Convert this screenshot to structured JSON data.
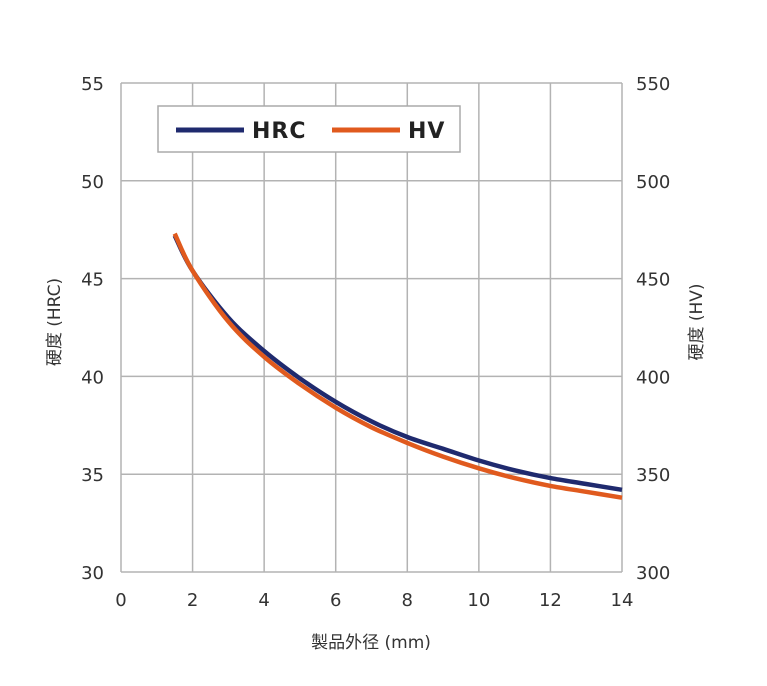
{
  "chart_data": {
    "type": "line",
    "xlabel": "製品外径 (mm)",
    "ylabel": "硬度 (HRC)",
    "y2label": "硬度 (HV)",
    "xlim": [
      0,
      14
    ],
    "ylim": [
      30,
      55
    ],
    "y2lim": [
      300,
      550
    ],
    "x_ticks": [
      0,
      2,
      4,
      6,
      8,
      10,
      12,
      14
    ],
    "y_ticks": [
      30,
      35,
      40,
      45,
      50,
      55
    ],
    "y2_ticks": [
      300,
      350,
      400,
      450,
      500,
      550
    ],
    "grid": true,
    "legend_position": "top-left",
    "series": [
      {
        "name": "HRC",
        "axis": "left",
        "color": "#1f2a6e",
        "x": [
          1.5,
          2,
          3,
          4,
          5,
          6,
          7,
          8,
          9,
          10,
          11,
          12,
          13,
          14
        ],
        "y": [
          47.2,
          45.4,
          43.0,
          41.3,
          39.9,
          38.7,
          37.7,
          36.9,
          36.3,
          35.7,
          35.2,
          34.8,
          34.5,
          34.2
        ]
      },
      {
        "name": "HV",
        "axis": "right",
        "color": "#e05a1e",
        "x": [
          1.5,
          2,
          3,
          4,
          5,
          6,
          7,
          8,
          9,
          10,
          11,
          12,
          13,
          14
        ],
        "y": [
          473,
          454,
          428,
          410,
          396,
          384,
          374,
          366,
          359,
          353,
          348,
          344,
          341,
          338
        ]
      }
    ]
  }
}
